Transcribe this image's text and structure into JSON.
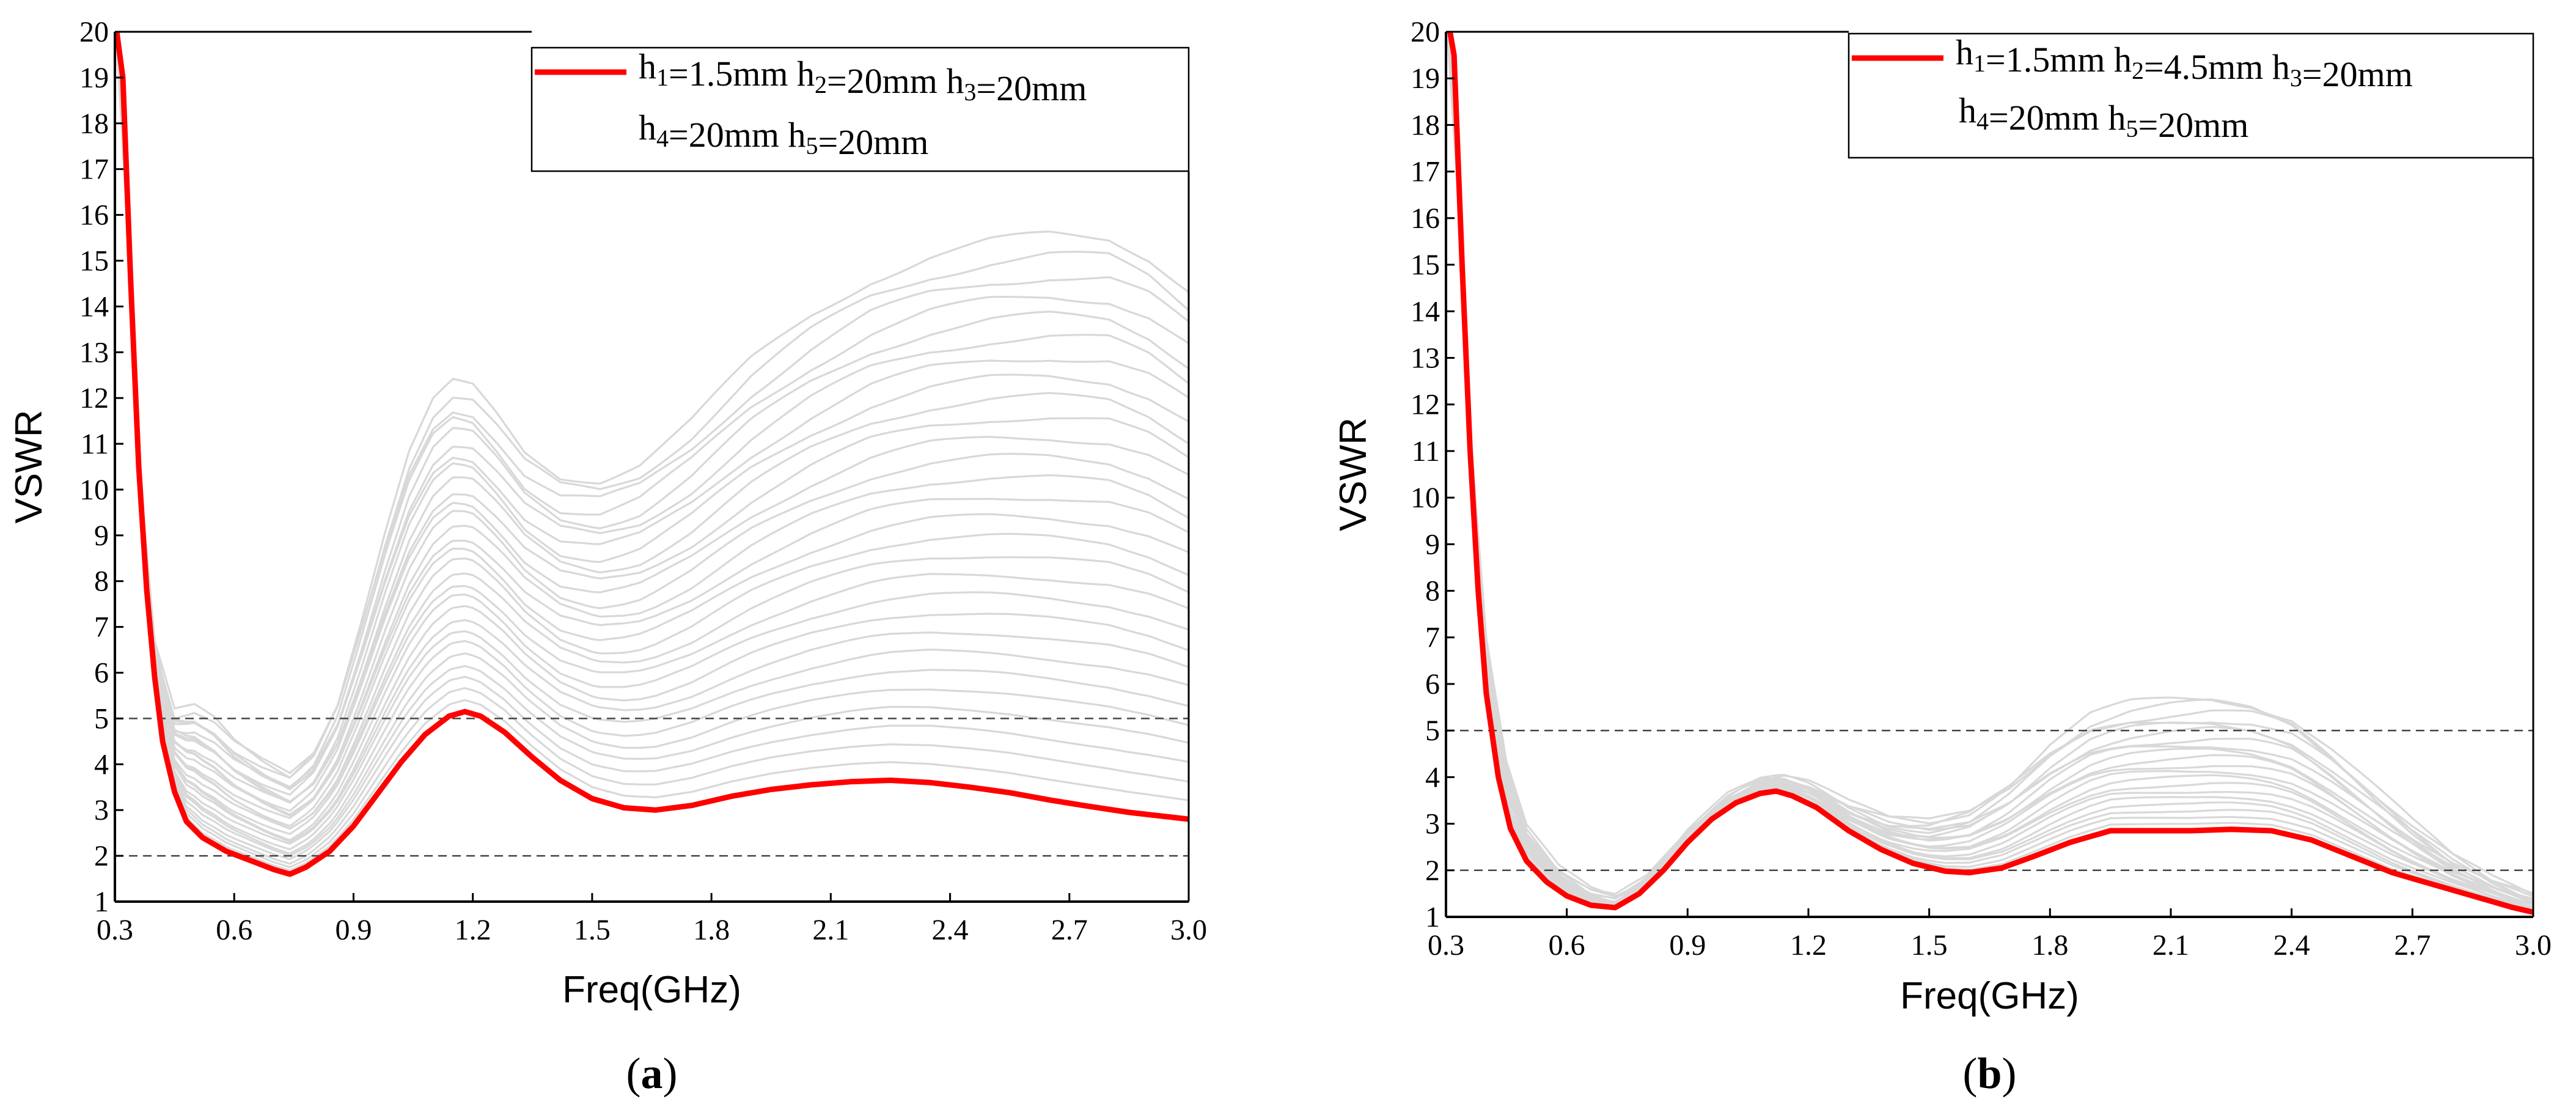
{
  "figure": {
    "colors": {
      "highlight": "#ff0000",
      "background_curves": "#d8d8d8",
      "reference": "#444444",
      "axis": "#000000"
    }
  },
  "chart_data": [
    {
      "type": "line",
      "panel": "a",
      "caption_open": "(",
      "caption_letter": "a",
      "caption_close": ")",
      "xlabel": "Freq(GHz)",
      "ylabel": "VSWR",
      "xlim": [
        0.3,
        3.0
      ],
      "ylim": [
        1,
        20
      ],
      "xticks": [
        0.3,
        0.6,
        0.9,
        1.2,
        1.5,
        1.8,
        2.1,
        2.4,
        2.7,
        3.0
      ],
      "xtick_labels": [
        "0.3",
        "0.6",
        "0.9",
        "1.2",
        "1.5",
        "1.8",
        "2.1",
        "2.4",
        "2.7",
        "3.0"
      ],
      "yticks": [
        1,
        2,
        3,
        4,
        5,
        6,
        7,
        8,
        9,
        10,
        11,
        12,
        13,
        14,
        15,
        16,
        17,
        18,
        19,
        20
      ],
      "reference_lines": [
        2,
        5
      ],
      "legend_position": "top-right",
      "legend": {
        "line1": [
          {
            "t": "h"
          },
          {
            "t": "1",
            "sub": true
          },
          {
            "t": "=1.5mm   h"
          },
          {
            "t": "2",
            "sub": true
          },
          {
            "t": "=20mm  h"
          },
          {
            "t": "3",
            "sub": true
          },
          {
            "t": "=20mm"
          }
        ],
        "line2": [
          {
            "t": "h"
          },
          {
            "t": "4",
            "sub": true
          },
          {
            "t": "=20mm    h"
          },
          {
            "t": "5",
            "sub": true
          },
          {
            "t": "=20mm"
          }
        ]
      },
      "highlight_series": {
        "name": "h1=1.5mm h2=20mm h3=20mm h4=20mm h5=20mm",
        "x": [
          0.3,
          0.32,
          0.34,
          0.36,
          0.38,
          0.4,
          0.42,
          0.45,
          0.48,
          0.52,
          0.58,
          0.64,
          0.7,
          0.74,
          0.78,
          0.84,
          0.9,
          0.96,
          1.02,
          1.08,
          1.14,
          1.18,
          1.22,
          1.28,
          1.35,
          1.42,
          1.5,
          1.58,
          1.66,
          1.75,
          1.85,
          1.95,
          2.05,
          2.15,
          2.25,
          2.35,
          2.45,
          2.55,
          2.65,
          2.75,
          2.85,
          2.95,
          3.0
        ],
        "y": [
          20.3,
          19.0,
          14.5,
          10.5,
          7.8,
          5.9,
          4.5,
          3.4,
          2.75,
          2.4,
          2.1,
          1.9,
          1.7,
          1.6,
          1.75,
          2.1,
          2.65,
          3.35,
          4.05,
          4.65,
          5.05,
          5.15,
          5.05,
          4.7,
          4.15,
          3.65,
          3.25,
          3.05,
          3.0,
          3.1,
          3.3,
          3.45,
          3.55,
          3.62,
          3.65,
          3.6,
          3.5,
          3.38,
          3.22,
          3.08,
          2.95,
          2.85,
          2.8
        ]
      },
      "background_series_count": 28,
      "background_envelope": {
        "x": [
          0.3,
          0.33,
          0.36,
          0.4,
          0.45,
          0.5,
          0.55,
          0.6,
          0.67,
          0.74,
          0.8,
          0.86,
          0.92,
          0.98,
          1.04,
          1.1,
          1.15,
          1.2,
          1.26,
          1.33,
          1.42,
          1.52,
          1.62,
          1.75,
          1.9,
          2.05,
          2.2,
          2.35,
          2.5,
          2.65,
          2.8,
          2.9,
          3.0
        ],
        "upper": [
          20.5,
          16.0,
          10.5,
          6.6,
          5.1,
          5.2,
          4.95,
          4.5,
          4.1,
          3.8,
          4.3,
          5.4,
          7.2,
          9.1,
          10.8,
          11.9,
          12.3,
          12.2,
          11.6,
          10.8,
          10.3,
          10.25,
          10.6,
          11.5,
          12.8,
          13.8,
          14.6,
          15.1,
          15.4,
          15.55,
          15.5,
          15.1,
          14.4
        ],
        "upper_profile": [
          0,
          0,
          0,
          0,
          0,
          0,
          0,
          0,
          0,
          0,
          0,
          0,
          0,
          0,
          0,
          0,
          0,
          0,
          0,
          0,
          0,
          0,
          0,
          0,
          0,
          0,
          0,
          0,
          0,
          0,
          0,
          0,
          0
        ]
      }
    },
    {
      "type": "line",
      "panel": "b",
      "caption_open": "(",
      "caption_letter": "b",
      "caption_close": ")",
      "xlabel": "Freq(GHz)",
      "ylabel": "VSWR",
      "xlim": [
        0.3,
        3.0
      ],
      "ylim": [
        1,
        20
      ],
      "xticks": [
        0.3,
        0.6,
        0.9,
        1.2,
        1.5,
        1.8,
        2.1,
        2.4,
        2.7,
        3.0
      ],
      "xtick_labels": [
        "0.3",
        "0.6",
        "0.9",
        "1.2",
        "1.5",
        "1.8",
        "2.1",
        "2.4",
        "2.7",
        "3.0"
      ],
      "yticks": [
        1,
        2,
        3,
        4,
        5,
        6,
        7,
        8,
        9,
        10,
        11,
        12,
        13,
        14,
        15,
        16,
        17,
        18,
        19,
        20
      ],
      "reference_lines": [
        2,
        5
      ],
      "legend_position": "top-right",
      "legend": {
        "line1": [
          {
            "t": "h"
          },
          {
            "t": "1",
            "sub": true
          },
          {
            "t": "=1.5mm   h"
          },
          {
            "t": "2",
            "sub": true
          },
          {
            "t": "=4.5mm  h"
          },
          {
            "t": "3",
            "sub": true
          },
          {
            "t": "=20mm"
          }
        ],
        "line2": [
          {
            "t": "h"
          },
          {
            "t": "4",
            "sub": true
          },
          {
            "t": "=20mm    h"
          },
          {
            "t": "5",
            "sub": true
          },
          {
            "t": "=20mm"
          }
        ]
      },
      "highlight_series": {
        "name": "h1=1.5mm h2=4.5mm h3=20mm h4=20mm h5=20mm",
        "x": [
          0.3,
          0.32,
          0.34,
          0.36,
          0.38,
          0.4,
          0.43,
          0.46,
          0.5,
          0.55,
          0.6,
          0.66,
          0.72,
          0.78,
          0.84,
          0.9,
          0.96,
          1.02,
          1.08,
          1.12,
          1.16,
          1.22,
          1.3,
          1.38,
          1.46,
          1.54,
          1.6,
          1.68,
          1.76,
          1.85,
          1.95,
          2.05,
          2.15,
          2.25,
          2.35,
          2.45,
          2.55,
          2.65,
          2.75,
          2.85,
          2.95,
          3.0
        ],
        "y": [
          20.5,
          19.5,
          15.0,
          11.0,
          8.0,
          5.8,
          4.0,
          2.9,
          2.2,
          1.75,
          1.45,
          1.25,
          1.2,
          1.5,
          2.0,
          2.6,
          3.1,
          3.45,
          3.65,
          3.7,
          3.6,
          3.35,
          2.85,
          2.45,
          2.15,
          1.98,
          1.95,
          2.05,
          2.3,
          2.6,
          2.85,
          2.85,
          2.85,
          2.88,
          2.85,
          2.65,
          2.3,
          1.95,
          1.7,
          1.45,
          1.2,
          1.1
        ]
      },
      "background_series_count": 20,
      "background_envelope": {
        "x": [
          0.3,
          0.33,
          0.36,
          0.4,
          0.45,
          0.5,
          0.58,
          0.66,
          0.72,
          0.8,
          0.9,
          1.0,
          1.08,
          1.14,
          1.2,
          1.3,
          1.4,
          1.5,
          1.6,
          1.7,
          1.8,
          1.9,
          2.0,
          2.1,
          2.2,
          2.3,
          2.4,
          2.5,
          2.6,
          2.7,
          2.8,
          2.9,
          3.0
        ],
        "upper": [
          20.5,
          16.5,
          11.5,
          7.0,
          4.3,
          2.9,
          2.0,
          1.55,
          1.4,
          1.8,
          2.8,
          3.6,
          3.95,
          4.0,
          3.85,
          3.4,
          3.1,
          3.05,
          3.3,
          3.9,
          4.7,
          5.3,
          5.55,
          5.65,
          5.7,
          5.6,
          5.3,
          4.6,
          3.8,
          3.0,
          2.3,
          1.8,
          1.45
        ],
        "upper_profile": [
          0,
          0,
          0,
          0,
          0,
          0,
          0,
          0,
          0,
          0,
          0,
          0,
          0,
          0,
          0,
          0,
          0,
          0,
          0,
          0,
          0,
          0,
          0,
          0,
          0,
          0,
          0,
          0,
          0,
          0,
          0,
          0,
          0
        ]
      }
    }
  ]
}
